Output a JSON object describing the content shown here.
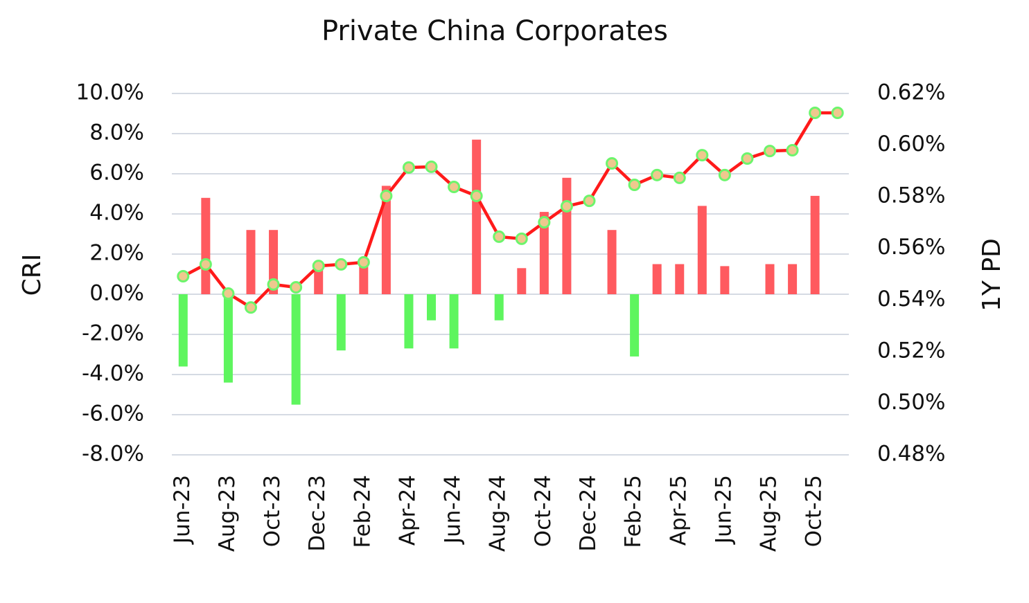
{
  "chart_data": {
    "type": "bar-line",
    "title": "Private China Corporates",
    "ylabel": "CRI",
    "y2label": "1Y PD",
    "categories": [
      "Jun-23",
      null,
      "Aug-23",
      null,
      "Oct-23",
      null,
      "Dec-23",
      null,
      "Feb-24",
      null,
      "Apr-24",
      null,
      "Jun-24",
      null,
      "Aug-24",
      null,
      "Oct-24",
      null,
      "Dec-24",
      null,
      "Feb-25",
      null,
      "Apr-25",
      null,
      "Jun-25",
      null,
      "Aug-25",
      null,
      "Oct-25",
      null
    ],
    "series": [
      {
        "name": "CRI",
        "type": "bar",
        "axis": "y",
        "color": "#ff5a5f",
        "negative_color": "#5ef55e",
        "values": [
          -3.6,
          4.8,
          -4.4,
          3.2,
          3.2,
          -5.5,
          1.4,
          -2.8,
          1.5,
          5.4,
          -2.7,
          -1.3,
          -2.7,
          7.7,
          -1.3,
          1.3,
          4.1,
          5.8,
          0,
          3.2,
          -3.1,
          1.5,
          1.5,
          4.4,
          1.4,
          0,
          1.5,
          1.5,
          4.9,
          0
        ]
      },
      {
        "name": "1Y PD",
        "type": "line",
        "axis": "y2",
        "color": "#ff1a1a",
        "marker_fill": "#eec88e",
        "marker_edge": "#6cf56c",
        "values": [
          0.5492,
          0.5538,
          0.5425,
          0.5371,
          0.546,
          0.5449,
          0.5532,
          0.5538,
          0.5546,
          0.5803,
          0.5913,
          0.5916,
          0.5838,
          0.5803,
          0.5645,
          0.5637,
          0.5701,
          0.5763,
          0.5784,
          0.5929,
          0.5846,
          0.5884,
          0.5873,
          0.5961,
          0.5884,
          0.5948,
          0.5977,
          0.598,
          0.6125,
          0.6125
        ]
      }
    ],
    "ylim": [
      -8,
      10
    ],
    "yticks": [
      {
        "value": -8,
        "label": "-8.0%"
      },
      {
        "value": -6,
        "label": "-6.0%"
      },
      {
        "value": -4,
        "label": "-4.0%"
      },
      {
        "value": -2,
        "label": "-2.0%"
      },
      {
        "value": 0,
        "label": "0.0%"
      },
      {
        "value": 2,
        "label": "2.0%"
      },
      {
        "value": 4,
        "label": "4.0%"
      },
      {
        "value": 6,
        "label": "6.0%"
      },
      {
        "value": 8,
        "label": "8.0%"
      },
      {
        "value": 10,
        "label": "10.0%"
      }
    ],
    "y2lim": [
      0.48,
      0.62
    ],
    "y2ticks": [
      {
        "value": 0.48,
        "label": "0.48%"
      },
      {
        "value": 0.5,
        "label": "0.50%"
      },
      {
        "value": 0.52,
        "label": "0.52%"
      },
      {
        "value": 0.54,
        "label": "0.54%"
      },
      {
        "value": 0.56,
        "label": "0.56%"
      },
      {
        "value": 0.58,
        "label": "0.58%"
      },
      {
        "value": 0.6,
        "label": "0.60%"
      },
      {
        "value": 0.62,
        "label": "0.62%"
      }
    ],
    "grid": true
  }
}
